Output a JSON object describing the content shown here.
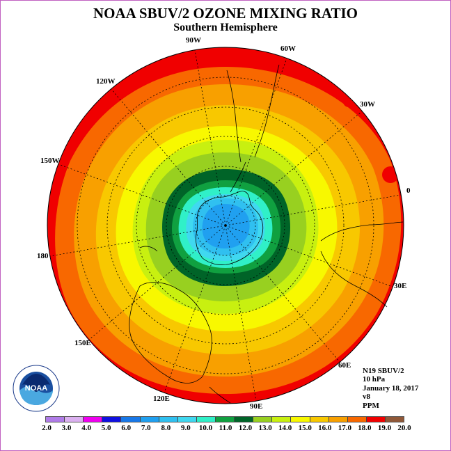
{
  "header": {
    "title": "NOAA SBUV/2 OZONE MIXING RATIO",
    "subtitle": "Southern Hemisphere"
  },
  "longitude_labels": [
    "90W",
    "60W",
    "30W",
    "0",
    "30E",
    "60E",
    "90E",
    "120E",
    "150E",
    "180",
    "150W",
    "120W"
  ],
  "info": {
    "line1": "N19 SBUV/2",
    "line2": "10 hPa",
    "line3": "January 18, 2017",
    "line4": "v8",
    "line5": "PPM"
  },
  "colorbar": {
    "ticks": [
      "2.0",
      "3.0",
      "4.0",
      "5.0",
      "6.0",
      "7.0",
      "8.0",
      "9.0",
      "10.0",
      "11.0",
      "12.0",
      "13.0",
      "14.0",
      "15.0",
      "16.0",
      "17.0",
      "18.0",
      "19.0",
      "20.0"
    ],
    "colors": [
      "#b07ce8",
      "#dbb0f0",
      "#f000f0",
      "#1010e0",
      "#1878e8",
      "#20a0f0",
      "#30c0f0",
      "#40d8f0",
      "#30f0c8",
      "#10a040",
      "#006428",
      "#98d020",
      "#c8f010",
      "#f8f800",
      "#f8c800",
      "#f8a000",
      "#f86800",
      "#f00000",
      "#905838"
    ]
  },
  "logo": {
    "text": "NOAA",
    "icon": "noaa-logo"
  }
}
